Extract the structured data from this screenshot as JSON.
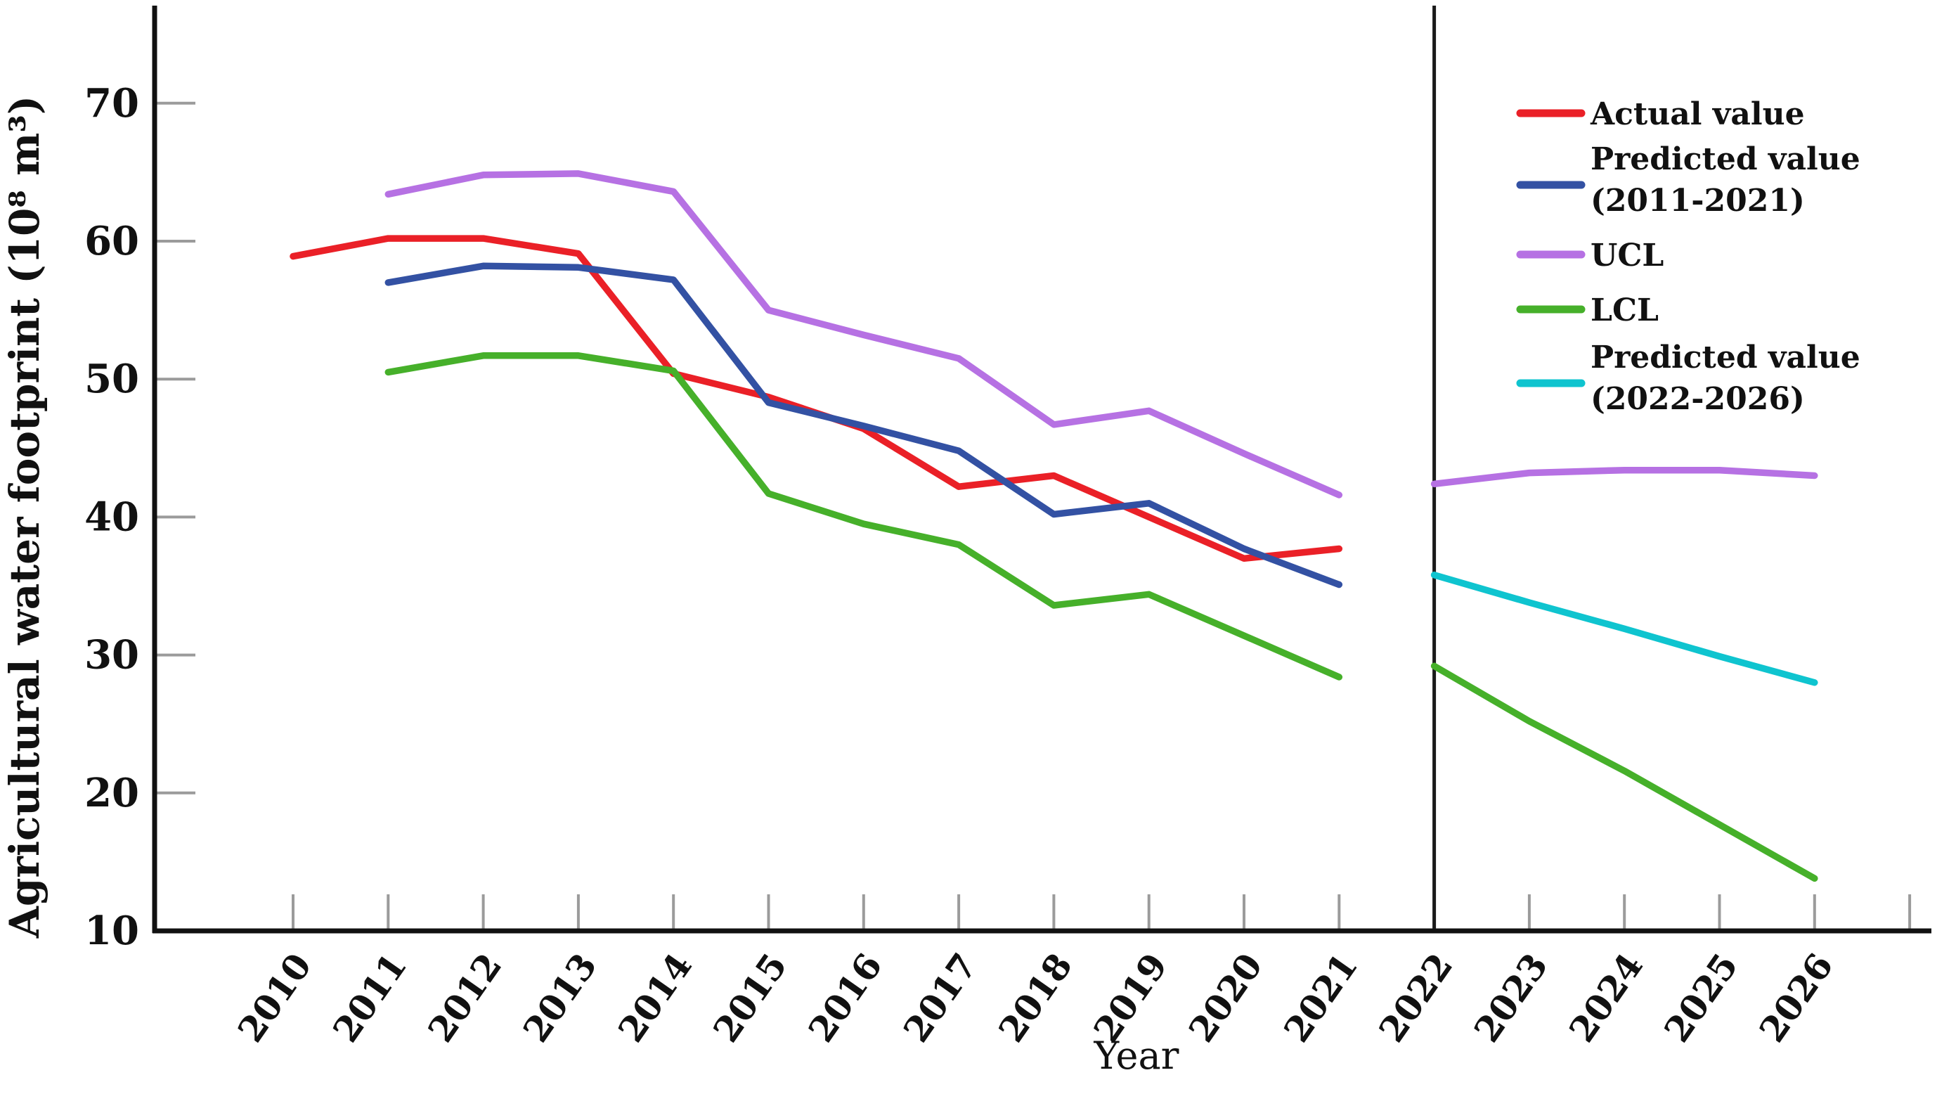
{
  "figure": {
    "background": "#ffffff",
    "axis_color": "#111111",
    "tick_color": "#9b9b9b",
    "divider_color": "#1a1a1a"
  },
  "axes": {
    "y_title": "Agricultural water footprint (10⁸ m³)",
    "x_title": "Year",
    "y_tick_labels": [
      "10",
      "20",
      "30",
      "40",
      "50",
      "60",
      "70"
    ],
    "x_tick_labels": [
      "2010",
      "2011",
      "2012",
      "2013",
      "2014",
      "2015",
      "2016",
      "2017",
      "2018",
      "2019",
      "2020",
      "2021",
      "2022",
      "2023",
      "2024",
      "2025",
      "2026"
    ]
  },
  "legend": {
    "entries": [
      {
        "line1": "Actual value",
        "line2": ""
      },
      {
        "line1": "Predicted value",
        "line2": "(2011-2021)"
      },
      {
        "line1": "UCL",
        "line2": ""
      },
      {
        "line1": "LCL",
        "line2": ""
      },
      {
        "line1": "Predicted value",
        "line2": "(2022-2026)"
      }
    ]
  },
  "chart_data": {
    "type": "line",
    "title": "",
    "xlabel": "Year",
    "ylabel": "Agricultural water footprint (10⁸ m³)",
    "xlim": [
      2010,
      2027.2
    ],
    "ylim": [
      10,
      77
    ],
    "y_ticks": [
      10,
      20,
      30,
      40,
      50,
      60,
      70
    ],
    "x_ticks": [
      2010,
      2011,
      2012,
      2013,
      2014,
      2015,
      2016,
      2017,
      2018,
      2019,
      2020,
      2021,
      2022,
      2023,
      2024,
      2025,
      2026
    ],
    "extra_unlabeled_x_tick": 2027,
    "divider_year": 2022,
    "grid": false,
    "legend_position": "upper right",
    "series": [
      {
        "name": "Actual value",
        "color": "#ea2027",
        "segments": [
          {
            "years": [
              2010,
              2011,
              2012,
              2013,
              2014,
              2015,
              2016,
              2017,
              2018,
              2019,
              2020,
              2021
            ],
            "values": [
              58.9,
              60.2,
              60.2,
              59.1,
              50.4,
              48.7,
              46.4,
              42.2,
              43.0,
              40.0,
              37.0,
              37.7
            ]
          }
        ]
      },
      {
        "name": "Predicted value (2011-2021)",
        "color": "#3351a3",
        "segments": [
          {
            "years": [
              2011,
              2012,
              2013,
              2014,
              2015,
              2016,
              2017,
              2018,
              2019,
              2020,
              2021
            ],
            "values": [
              57.0,
              58.2,
              58.1,
              57.2,
              48.3,
              46.6,
              44.8,
              40.2,
              41.0,
              37.7,
              35.1
            ]
          }
        ]
      },
      {
        "name": "UCL",
        "color": "#b671e3",
        "segments": [
          {
            "years": [
              2011,
              2012,
              2013,
              2014,
              2015,
              2016,
              2017,
              2018,
              2019,
              2020,
              2021
            ],
            "values": [
              63.4,
              64.8,
              64.9,
              63.6,
              55.0,
              53.2,
              51.5,
              46.7,
              47.7,
              44.6,
              41.6
            ]
          },
          {
            "years": [
              2022,
              2023,
              2024,
              2025,
              2026
            ],
            "values": [
              42.4,
              43.2,
              43.4,
              43.4,
              43.0
            ]
          }
        ]
      },
      {
        "name": "LCL",
        "color": "#46b02a",
        "segments": [
          {
            "years": [
              2011,
              2012,
              2013,
              2014,
              2015,
              2016,
              2017,
              2018,
              2019,
              2020,
              2021
            ],
            "values": [
              50.5,
              51.7,
              51.7,
              50.6,
              41.7,
              39.5,
              38.0,
              33.6,
              34.4,
              31.4,
              28.4
            ]
          },
          {
            "years": [
              2022,
              2023,
              2024,
              2025,
              2026
            ],
            "values": [
              29.2,
              25.2,
              21.6,
              17.7,
              13.8
            ]
          }
        ]
      },
      {
        "name": "Predicted value (2022-2026)",
        "color": "#0fc4cf",
        "segments": [
          {
            "years": [
              2022,
              2023,
              2024,
              2025,
              2026
            ],
            "values": [
              35.8,
              33.8,
              31.9,
              29.9,
              28.0
            ]
          }
        ]
      }
    ]
  }
}
